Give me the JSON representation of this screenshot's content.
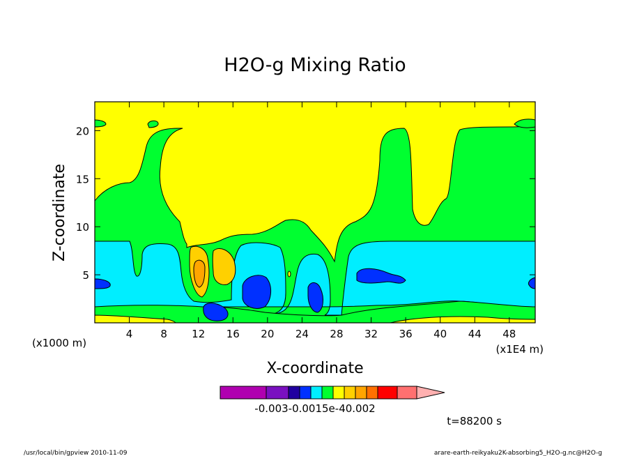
{
  "chart_data": {
    "type": "heatmap",
    "title": "H2O-g Mixing Ratio",
    "xlabel": "X-coordinate",
    "ylabel": "Z-coordinate",
    "x_unit_left": "(x1000 m)",
    "x_unit_right": "(x1E4 m)",
    "xlim": [
      0,
      51
    ],
    "ylim": [
      0,
      23
    ],
    "x_ticks": [
      "4",
      "8",
      "12",
      "16",
      "20",
      "24",
      "28",
      "32",
      "36",
      "40",
      "44",
      "48"
    ],
    "x_tick_values": [
      4,
      8,
      12,
      16,
      20,
      24,
      28,
      32,
      36,
      40,
      44,
      48
    ],
    "y_ticks": [
      "5",
      "10",
      "15",
      "20"
    ],
    "y_tick_values": [
      5,
      10,
      15,
      20
    ],
    "time_label": "t=88200 s",
    "colorbar": {
      "colors": [
        "#b000b0",
        "#7a10c0",
        "#2000a0",
        "#0030ff",
        "#00eeff",
        "#00ff30",
        "#ffff00",
        "#ffd000",
        "#ffa500",
        "#ff7000",
        "#ff0000",
        "#ff7070",
        "#ffb0b0"
      ],
      "labels": [
        "-0.003",
        "-0.0015e-4",
        "0.002"
      ]
    }
  },
  "footer": {
    "left": "/usr/local/bin/gpview 2010-11-09",
    "right": "arare-earth-reikyaku2K-absorbing5_H2O-g.nc@H2O-g"
  },
  "colors": {
    "yellow": "#ffff00",
    "green": "#00ff30",
    "cyan": "#00eeff",
    "blue": "#0030ff",
    "light_orange": "#ffd000",
    "orange": "#ffa500"
  }
}
